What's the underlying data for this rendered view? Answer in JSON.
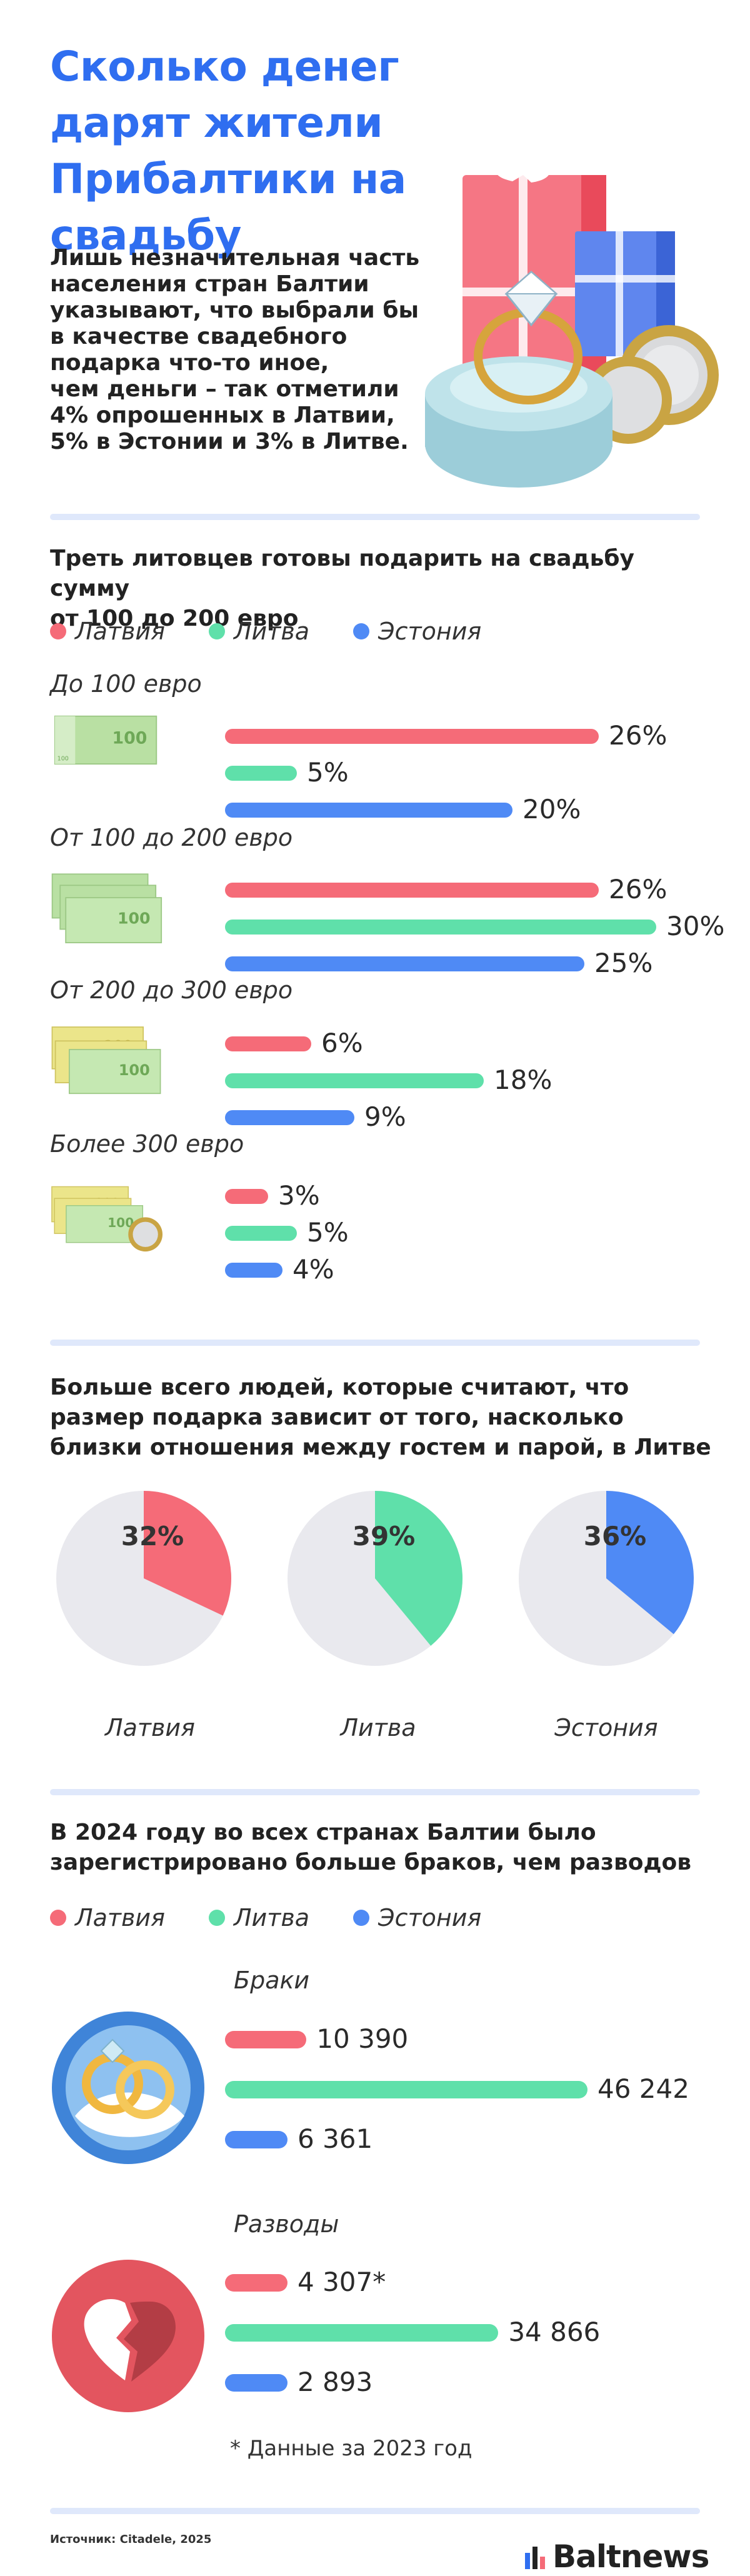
{
  "header": {
    "title": "Сколько денег дарят жители Прибалтики на свадьбу",
    "lead": "Лишь незначительная часть\nнаселения стран Балтии\nуказывают, что выбрали бы\nв качестве свадебного\nподарка что-то иное,\nчем деньги – так отметили\n4% опрошенных в Латвии,\n5% в Эстонии и 3% в Литве."
  },
  "colors": {
    "latvia": "#f56b78",
    "lithuania": "#5fe0aa",
    "estonia": "#4f8af5",
    "title_blue": "#2f6ef0"
  },
  "legend": [
    "Латвия",
    "Литва",
    "Эстония"
  ],
  "section1": {
    "title": "Треть литовцев готовы подарить на свадьбу сумму\nот 100 до 200 евро",
    "groups": [
      {
        "label": "До 100 евро",
        "bill_icon": "euro-100-banknote-icon"
      },
      {
        "label": "От 100 до 200 евро",
        "bill_icon": "euro-100-banknotes-stack-icon"
      },
      {
        "label": "От 200 до 300 евро",
        "bill_icon": "euro-200-100-banknotes-icon"
      },
      {
        "label": "Более 300 евро",
        "bill_icon": "euro-banknotes-and-coin-icon"
      }
    ]
  },
  "section2": {
    "title": "Больше всего людей, которые считают, что\nразмер подарка зависит от того, насколько\nблизки отношения между гостем и парой, в Литве"
  },
  "section3": {
    "title": "В 2024 году во всех странах Балтии было\nзарегистрировано больше браков, чем разводов",
    "marriages_label": "Браки",
    "divorces_label": "Разводы",
    "rings_icon": "wedding-rings-icon",
    "heart_icon": "broken-heart-icon",
    "note": "*  Данные за 2023 год"
  },
  "footer": {
    "source": "Источник: Citadele, 2025",
    "logo": "Baltnews"
  },
  "chart_data": [
    {
      "type": "bar",
      "orientation": "horizontal",
      "title": "Треть литовцев готовы подарить на свадьбу сумму от 100 до 200 евро",
      "categories": [
        "До 100 евро",
        "От 100 до 200 евро",
        "От 200 до 300 евро",
        "Более 300 евро"
      ],
      "series": [
        {
          "name": "Латвия",
          "values": [
            26,
            26,
            6,
            3
          ],
          "labels": [
            "26%",
            "26%",
            "6%",
            "3%"
          ]
        },
        {
          "name": "Литва",
          "values": [
            5,
            30,
            18,
            5
          ],
          "labels": [
            "5%",
            "30%",
            "18%",
            "5%"
          ]
        },
        {
          "name": "Эстония",
          "values": [
            20,
            25,
            9,
            4
          ],
          "labels": [
            "20%",
            "25%",
            "9%",
            "4%"
          ]
        }
      ],
      "legend": "top-left"
    },
    {
      "type": "pie",
      "title": "Больше всего людей, которые считают, что размер подарка зависит от того, насколько близки отношения между гостем и парой, в Литве",
      "slices": [
        {
          "name": "Латвия",
          "value": 32,
          "label": "32%"
        },
        {
          "name": "Литва",
          "value": 39,
          "label": "39%"
        },
        {
          "name": "Эстония",
          "value": 36,
          "label": "36%"
        }
      ]
    },
    {
      "type": "bar",
      "orientation": "horizontal",
      "title": "В 2024 году во всех странах Балтии было зарегистрировано больше браков, чем разводов",
      "categories": [
        "Браки",
        "Разводы"
      ],
      "series": [
        {
          "name": "Латвия",
          "values": [
            10390,
            4307
          ],
          "labels": [
            "10 390",
            "4 307*"
          ]
        },
        {
          "name": "Литва",
          "values": [
            46242,
            34866
          ],
          "labels": [
            "46 242",
            "34 866"
          ]
        },
        {
          "name": "Эстония",
          "values": [
            6361,
            2893
          ],
          "labels": [
            "6 361",
            "2 893"
          ]
        }
      ],
      "legend": "top-left"
    }
  ]
}
